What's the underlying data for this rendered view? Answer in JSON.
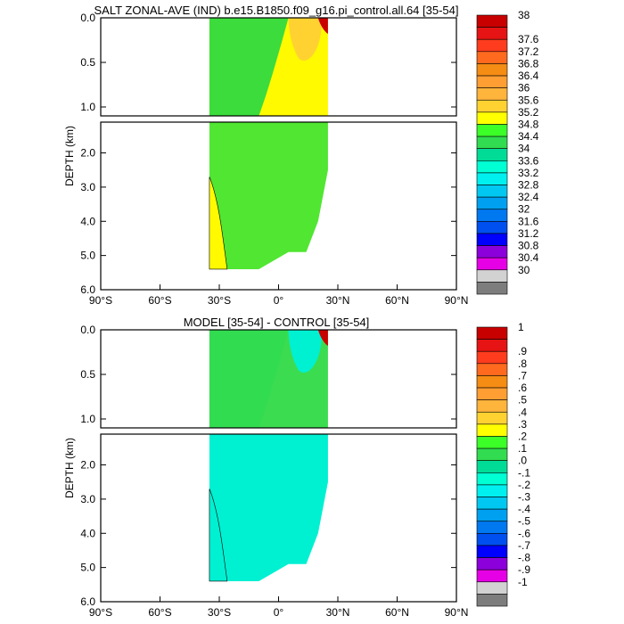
{
  "chart_data": [
    {
      "type": "heatmap",
      "title": "SALT ZONAL-AVE (IND) b.e15.B1850.f09_g16.pi_control.all.64 [35-54]",
      "ylabel": "DEPTH (km)",
      "x_ticks": [
        "90°S",
        "60°S",
        "30°S",
        "0°",
        "30°N",
        "60°N",
        "90°N"
      ],
      "upper_y_ticks": [
        "0.0",
        "0.5",
        "1.0"
      ],
      "lower_y_ticks": [
        "2.0",
        "3.0",
        "4.0",
        "5.0",
        "6.0"
      ],
      "upper_ylim": [
        0,
        1.1
      ],
      "lower_ylim": [
        1.1,
        6.0
      ],
      "xlim": [
        -90,
        90
      ],
      "colorbar_labels": [
        "38",
        "37.6",
        "37.2",
        "36.8",
        "36.4",
        "36",
        "35.6",
        "35.2",
        "34.8",
        "34.4",
        "34",
        "33.6",
        "33.2",
        "32.8",
        "32.4",
        "32",
        "31.6",
        "31.2",
        "30.8",
        "30.4",
        "30"
      ],
      "colorbar_colors": [
        "#c80000",
        "#e61414",
        "#ff3c1e",
        "#ff6a1e",
        "#f58c14",
        "#ff9e32",
        "#ffb43c",
        "#ffd232",
        "#ffff00",
        "#3cff28",
        "#32dc50",
        "#00dc96",
        "#00ffd2",
        "#00f0f0",
        "#00c8f0",
        "#00a0f0",
        "#0078f0",
        "#0050f0",
        "#0000ff",
        "#8c00dc",
        "#e600e6",
        "#d2d2d2",
        "#7d7d7d"
      ],
      "fill_colors": {
        "base": "#fffa00",
        "band": "#ffd232",
        "south": "#3cdc3c",
        "south2": "#50e632"
      }
    },
    {
      "type": "heatmap",
      "title": "MODEL [35-54] - CONTROL [35-54]",
      "ylabel": "DEPTH (km)",
      "x_ticks": [
        "90°S",
        "60°S",
        "30°S",
        "0°",
        "30°N",
        "60°N",
        "90°N"
      ],
      "upper_y_ticks": [
        "0.0",
        "0.5",
        "1.0"
      ],
      "lower_y_ticks": [
        "2.0",
        "3.0",
        "4.0",
        "5.0",
        "6.0"
      ],
      "upper_ylim": [
        0,
        1.1
      ],
      "lower_ylim": [
        1.1,
        6.0
      ],
      "xlim": [
        -90,
        90
      ],
      "colorbar_labels": [
        "1",
        ".9",
        ".8",
        ".7",
        ".6",
        ".5",
        ".4",
        ".3",
        ".2",
        ".1",
        ".0",
        "-.1",
        "-.2",
        "-.3",
        "-.4",
        "-.5",
        "-.6",
        "-.7",
        "-.8",
        "-.9",
        "-1"
      ],
      "colorbar_colors": [
        "#c80000",
        "#e61414",
        "#ff3c1e",
        "#ff6a1e",
        "#f58c14",
        "#ff9e32",
        "#ffb43c",
        "#ffd232",
        "#ffff00",
        "#3cff28",
        "#32dc50",
        "#00dc96",
        "#00ffd2",
        "#00f0f0",
        "#00c8f0",
        "#00a0f0",
        "#0078f0",
        "#0050f0",
        "#0000ff",
        "#8c00dc",
        "#e600e6",
        "#d2d2d2",
        "#7d7d7d"
      ],
      "fill_colors": {
        "base": "#3cdc50",
        "band": "#00f0d2",
        "south": "#32dc50",
        "south2": "#00f0d2"
      }
    }
  ]
}
